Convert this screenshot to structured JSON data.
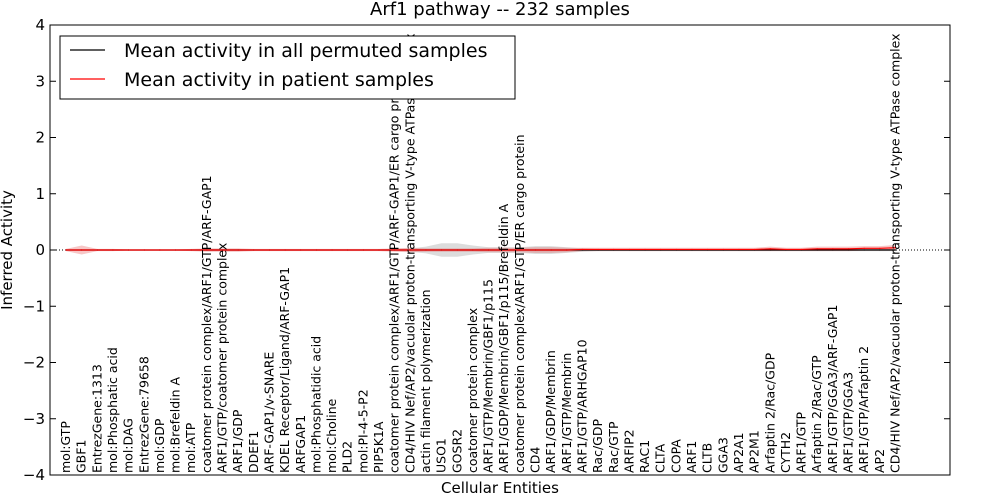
{
  "chart_data": {
    "type": "line",
    "title": "Arf1 pathway -- 232 samples",
    "xlabel": "Cellular Entities",
    "ylabel": "Inferred Activity",
    "ylim": [
      -4,
      4
    ],
    "yticks": [
      "−4",
      "−3",
      "−2",
      "−1",
      "0",
      "1",
      "2",
      "3",
      "4"
    ],
    "categories": [
      "mol:GTP",
      "GBF1",
      "EntrezGene:1313",
      "mol:Phosphatic acid",
      "mol:DAG",
      "EntrezGene:79658",
      "mol:GDP",
      "mol:Brefeldin A",
      "mol:ATP",
      "coatomer protein complex/ARF1/GTP/ARF-GAP1",
      "ARF1/GTP/coatomer protein complex",
      "ARF1/GDP",
      "DDEF1",
      "ARF-GAP1/v-SNARE",
      "KDEL Receptor/Ligand/ARF-GAP1",
      "ARFGAP1",
      "mol:Phosphatidic acid",
      "mol:Choline",
      "PLD2",
      "mol:PI-4-5-P2",
      "PIP5K1A",
      "coatomer protein complex/ARF1/GTP/ARF-GAP1/ER cargo protein",
      "CD4/HIV Nef/AP2/vacuolar proton-transporting V-type ATPase complex",
      "actin filament polymerization",
      "USO1",
      "GOSR2",
      "coatomer protein complex",
      "ARF1/GTP/Membrin/GBF1/p115",
      "ARF1/GDP/Membrin/GBF1/p115/Brefeldin A",
      "coatomer protein complex/ARF1/GTP/ER cargo protein",
      "CD4",
      "ARF1/GDP/Membrin",
      "ARF1/GTP/Membrin",
      "ARF1/GTP/ARHGAP10",
      "Rac/GDP",
      "Rac/GTP",
      "ARFIP2",
      "RAC1",
      "CLTA",
      "COPA",
      "ARF1",
      "CLTB",
      "GGA3",
      "AP2A1",
      "AP2M1",
      "Arfaptin 2/Rac/GDP",
      "CYTH2",
      "ARF1/GTP",
      "Arfaptin 2/Rac/GTP",
      "ARF1/GTP/GGA3/ARF-GAP1",
      "ARF1/GTP/GGA3",
      "ARF1/GTP/Arfaptin 2",
      "AP2",
      "CD4/HIV Nef/AP2/vacuolar proton-transporting V-type ATPase complex"
    ],
    "series": [
      {
        "name": "Mean activity in all permuted samples",
        "color": "#000000",
        "values": [
          0,
          0,
          0,
          0,
          0,
          0,
          0,
          0,
          0,
          0,
          0,
          0,
          0,
          0,
          0,
          0,
          0,
          0,
          0,
          0,
          0,
          0,
          0,
          0,
          0,
          0,
          0,
          0,
          0,
          0,
          0,
          0,
          0,
          0,
          0,
          0,
          0,
          0,
          0,
          0,
          0,
          0,
          0,
          0,
          0,
          0,
          0,
          0,
          0,
          0,
          0,
          0,
          0,
          0
        ],
        "spread": [
          0.01,
          0.01,
          0.01,
          0.01,
          0.01,
          0.01,
          0.01,
          0.01,
          0.01,
          0.02,
          0.02,
          0.02,
          0.01,
          0.01,
          0.01,
          0.01,
          0.01,
          0.01,
          0.01,
          0.01,
          0.01,
          0.02,
          0.03,
          0.06,
          0.12,
          0.12,
          0.08,
          0.05,
          0.05,
          0.05,
          0.07,
          0.07,
          0.05,
          0.03,
          0.02,
          0.02,
          0.02,
          0.02,
          0.02,
          0.02,
          0.02,
          0.02,
          0.02,
          0.02,
          0.02,
          0.02,
          0.02,
          0.02,
          0.02,
          0.02,
          0.02,
          0.02,
          0.02,
          0.02
        ]
      },
      {
        "name": "Mean activity in patient samples",
        "color": "#ff0000",
        "values": [
          0,
          0,
          0,
          0,
          0,
          0,
          0,
          0,
          0,
          0,
          0,
          0,
          0,
          0,
          0,
          0,
          0,
          0,
          0,
          0,
          0,
          0,
          0,
          0,
          0,
          0,
          0,
          0,
          0,
          0,
          0,
          0,
          0,
          0.01,
          0.01,
          0.01,
          0.01,
          0.01,
          0.01,
          0.01,
          0.01,
          0.01,
          0.01,
          0.01,
          0.01,
          0.02,
          0.01,
          0.01,
          0.02,
          0.02,
          0.02,
          0.03,
          0.03,
          0.04
        ],
        "spread": [
          0.02,
          0.08,
          0.02,
          0.02,
          0.01,
          0.01,
          0.01,
          0.01,
          0.02,
          0.03,
          0.03,
          0.03,
          0.02,
          0.02,
          0.02,
          0.02,
          0.02,
          0.02,
          0.02,
          0.02,
          0.02,
          0.03,
          0.04,
          0.03,
          0.03,
          0.03,
          0.03,
          0.04,
          0.04,
          0.04,
          0.05,
          0.05,
          0.04,
          0.03,
          0.03,
          0.03,
          0.03,
          0.03,
          0.03,
          0.03,
          0.03,
          0.03,
          0.03,
          0.03,
          0.03,
          0.04,
          0.03,
          0.03,
          0.04,
          0.04,
          0.04,
          0.04,
          0.04,
          0.05
        ]
      }
    ],
    "baseline": 0,
    "legend": "top-left",
    "grid": false
  }
}
